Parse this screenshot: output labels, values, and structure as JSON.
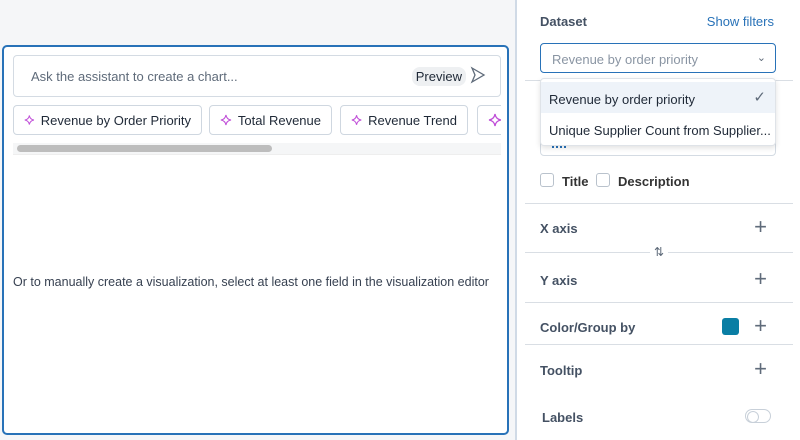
{
  "assistant": {
    "placeholder": "Ask the assistant to create a chart...",
    "preview_label": "Preview",
    "suggestions": [
      {
        "label": "Revenue by Order Priority"
      },
      {
        "label": "Total Revenue"
      },
      {
        "label": "Revenue Trend"
      }
    ],
    "manual_hint": "Or to manually create a visualization, select at least one field in the visualization editor"
  },
  "editor": {
    "dataset_label": "Dataset",
    "show_filters": "Show filters",
    "dataset_value": "Revenue by order priority",
    "dataset_options": [
      {
        "label": "Revenue by order priority",
        "selected": true
      },
      {
        "label": "Unique Supplier Count from Supplier..."
      }
    ],
    "title_label": "Title",
    "description_label": "Description",
    "x_axis": "X axis",
    "y_axis": "Y axis",
    "color_group": "Color/Group by",
    "color_value": "#0a7ea4",
    "tooltip": "Tooltip",
    "labels": "Labels",
    "labels_on": false
  },
  "colors": {
    "accent": "#2872b8"
  }
}
